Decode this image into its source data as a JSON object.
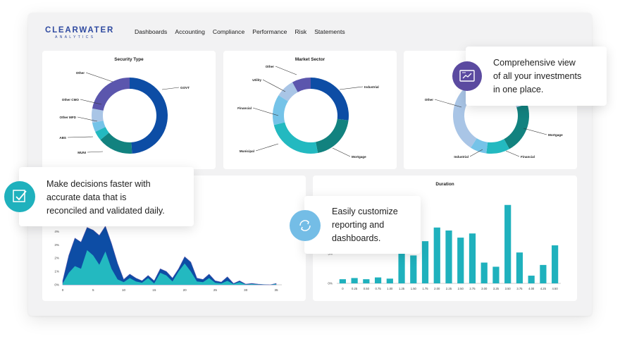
{
  "app": {
    "logo_main": "CLEARWATER",
    "logo_sub": "ANALYTICS"
  },
  "nav": {
    "items": [
      "Dashboards",
      "Accounting",
      "Compliance",
      "Performance",
      "Risk",
      "Statements"
    ]
  },
  "colors": {
    "navy": "#0d4da5",
    "teal": "#12827f",
    "cyan": "#23b9c0",
    "sky": "#75c3e8",
    "light": "#a9c5e6",
    "purple": "#5b56ad"
  },
  "callouts": {
    "investments": {
      "icon": "dashboard-icon",
      "lines": [
        "Comprehensive view",
        "of all your investments",
        "in one place."
      ]
    },
    "decisions": {
      "icon": "checkmark-icon",
      "lines": [
        "Make decisions faster with",
        "accurate data that is",
        "reconciled and validated daily."
      ]
    },
    "customize": {
      "icon": "refresh-icon",
      "lines": [
        "Easily customize",
        "reporting and",
        "dashboards."
      ]
    }
  },
  "chart_data": [
    {
      "type": "pie",
      "title": "Security Type",
      "labels": [
        "GOVT",
        "MUNI",
        "ABS",
        "Other MFD",
        "Other CMO",
        "Other"
      ],
      "values": [
        49,
        15,
        4,
        4,
        6,
        22
      ],
      "colors": [
        "#0d4da5",
        "#12827f",
        "#23b9c0",
        "#75c3e8",
        "#a9c5e6",
        "#5b56ad"
      ]
    },
    {
      "type": "pie",
      "title": "Market Sector",
      "labels": [
        "Industrial",
        "Mortgage",
        "Municipal",
        "Financial",
        "Utility",
        "Other"
      ],
      "values": [
        27,
        20,
        24,
        13,
        8,
        8
      ],
      "colors": [
        "#0d4da5",
        "#12827f",
        "#23b9c0",
        "#75c3e8",
        "#a9c5e6",
        "#5b56ad"
      ]
    },
    {
      "type": "pie",
      "title": "",
      "labels": [
        "Mortgage",
        "Financial",
        "Industrial",
        "Other"
      ],
      "values": [
        22,
        10,
        7,
        61
      ],
      "colors": [
        "#12827f",
        "#23b9c0",
        "#75c3e8",
        "#a9c5e6"
      ]
    },
    {
      "type": "area",
      "title": "",
      "x": [
        0,
        1,
        2,
        3,
        4,
        5,
        6,
        7,
        8,
        9,
        10,
        11,
        12,
        13,
        14,
        15,
        16,
        17,
        18,
        19,
        20,
        21,
        22,
        23,
        24,
        25,
        26,
        27,
        28,
        29,
        30,
        31,
        32,
        33,
        34,
        35
      ],
      "yticks": [
        "0%",
        "1%",
        "2%",
        "3%",
        "4%"
      ],
      "xticks": [
        0,
        5,
        10,
        15,
        20,
        25,
        30,
        35
      ],
      "ylim": [
        0,
        4.6
      ],
      "series": [
        {
          "values": [
            0.3,
            2.2,
            3.5,
            3.2,
            4.3,
            4.1,
            3.7,
            4.4,
            3.1,
            1.6,
            0.4,
            0.8,
            0.5,
            0.3,
            0.7,
            0.3,
            1.2,
            1.0,
            0.5,
            1.2,
            2.1,
            1.7,
            0.5,
            0.4,
            0.8,
            0.3,
            0.2,
            0.6,
            0.1,
            0.3,
            0.05,
            0.1,
            0.05,
            0.02,
            0.0,
            0.1
          ]
        },
        {
          "values": [
            0.1,
            0.9,
            1.4,
            1.2,
            2.6,
            2.2,
            1.5,
            2.5,
            1.2,
            0.4,
            0.2,
            0.5,
            0.25,
            0.15,
            0.5,
            0.1,
            0.9,
            0.7,
            0.25,
            1.0,
            1.6,
            1.0,
            0.25,
            0.2,
            0.5,
            0.15,
            0.1,
            0.3,
            0.05,
            0.2,
            0.02,
            0.05,
            0.02,
            0.01,
            0.0,
            0.05
          ]
        }
      ]
    },
    {
      "type": "bar",
      "title": "Duration",
      "categories": [
        "0",
        "0.25",
        "0.50",
        "0.75",
        "1.00",
        "1.25",
        "1.50",
        "1.75",
        "2.00",
        "2.25",
        "2.50",
        "2.75",
        "3.00",
        "3.25",
        "3.50",
        "3.75",
        "4.00",
        "4.25",
        "4.50"
      ],
      "values": [
        0.7,
        0.9,
        0.7,
        1.0,
        0.8,
        5.1,
        4.7,
        7.1,
        9.4,
        8.9,
        7.7,
        8.4,
        3.5,
        2.8,
        13.2,
        5.2,
        1.3,
        3.1,
        6.4
      ],
      "yticks": [
        "0%",
        "5%"
      ],
      "ylim": [
        0,
        14
      ]
    }
  ]
}
